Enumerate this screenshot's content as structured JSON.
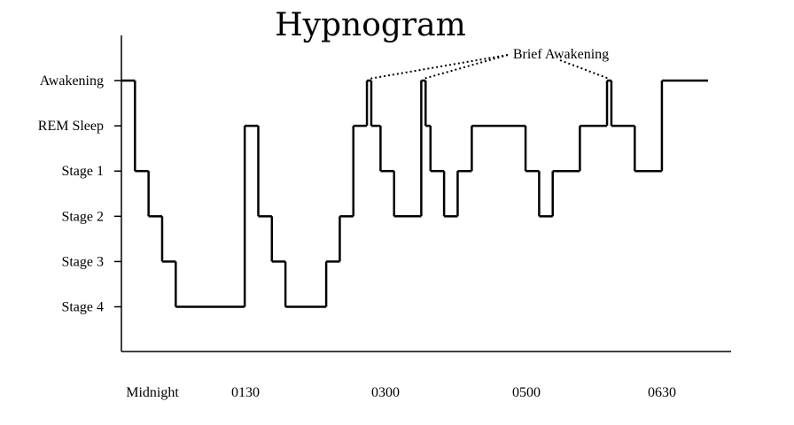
{
  "chart_data": {
    "type": "line",
    "title": "Hypnogram",
    "xlabel": "",
    "ylabel": "",
    "x_ticks": [
      "Midnight",
      "0130",
      "0300",
      "0500",
      "0630"
    ],
    "y_levels": [
      "Awakening",
      "REM Sleep",
      "Stage 1",
      "Stage 2",
      "Stage 3",
      "Stage 4"
    ],
    "rem_color": "#e00000",
    "line_color": "#000000",
    "annotation": {
      "text": "Brief Awakening"
    },
    "series": [
      {
        "segments": [
          {
            "start": 0.0,
            "end": 0.25,
            "stage": "Awakening"
          },
          {
            "start": 0.25,
            "end": 0.5,
            "stage": "Stage 1"
          },
          {
            "start": 0.5,
            "end": 0.75,
            "stage": "Stage 2"
          },
          {
            "start": 0.75,
            "end": 1.0,
            "stage": "Stage 3"
          },
          {
            "start": 1.0,
            "end": 2.27,
            "stage": "Stage 4"
          },
          {
            "start": 2.27,
            "end": 2.52,
            "stage": "REM Sleep"
          },
          {
            "start": 2.52,
            "end": 2.77,
            "stage": "Stage 2"
          },
          {
            "start": 2.77,
            "end": 3.02,
            "stage": "Stage 3"
          },
          {
            "start": 3.02,
            "end": 3.77,
            "stage": "Stage 4"
          },
          {
            "start": 3.77,
            "end": 4.02,
            "stage": "Stage 3"
          },
          {
            "start": 4.02,
            "end": 4.27,
            "stage": "Stage 2"
          },
          {
            "start": 4.27,
            "end": 4.52,
            "stage": "REM Sleep"
          },
          {
            "start": 4.52,
            "end": 4.6,
            "stage": "Awakening"
          },
          {
            "start": 4.6,
            "end": 4.77,
            "stage": "REM Sleep"
          },
          {
            "start": 4.77,
            "end": 5.02,
            "stage": "Stage 1"
          },
          {
            "start": 5.02,
            "end": 5.52,
            "stage": "Stage 2"
          },
          {
            "start": 5.52,
            "end": 5.6,
            "stage": "Awakening"
          },
          {
            "start": 5.6,
            "end": 5.69,
            "stage": "REM Sleep"
          },
          {
            "start": 5.69,
            "end": 5.94,
            "stage": "Stage 1"
          },
          {
            "start": 5.94,
            "end": 6.19,
            "stage": "Stage 2"
          },
          {
            "start": 6.19,
            "end": 6.45,
            "stage": "Stage 1"
          },
          {
            "start": 6.45,
            "end": 7.44,
            "stage": "REM Sleep"
          },
          {
            "start": 7.44,
            "end": 7.69,
            "stage": "Stage 1"
          },
          {
            "start": 7.69,
            "end": 7.94,
            "stage": "Stage 2"
          },
          {
            "start": 7.94,
            "end": 8.44,
            "stage": "Stage 1"
          },
          {
            "start": 8.44,
            "end": 8.94,
            "stage": "REM Sleep"
          },
          {
            "start": 8.94,
            "end": 9.02,
            "stage": "Awakening"
          },
          {
            "start": 9.02,
            "end": 9.45,
            "stage": "REM Sleep"
          },
          {
            "start": 9.45,
            "end": 9.95,
            "stage": "Stage 1"
          },
          {
            "start": 9.95,
            "end": 10.8,
            "stage": "Awakening"
          }
        ]
      }
    ]
  }
}
